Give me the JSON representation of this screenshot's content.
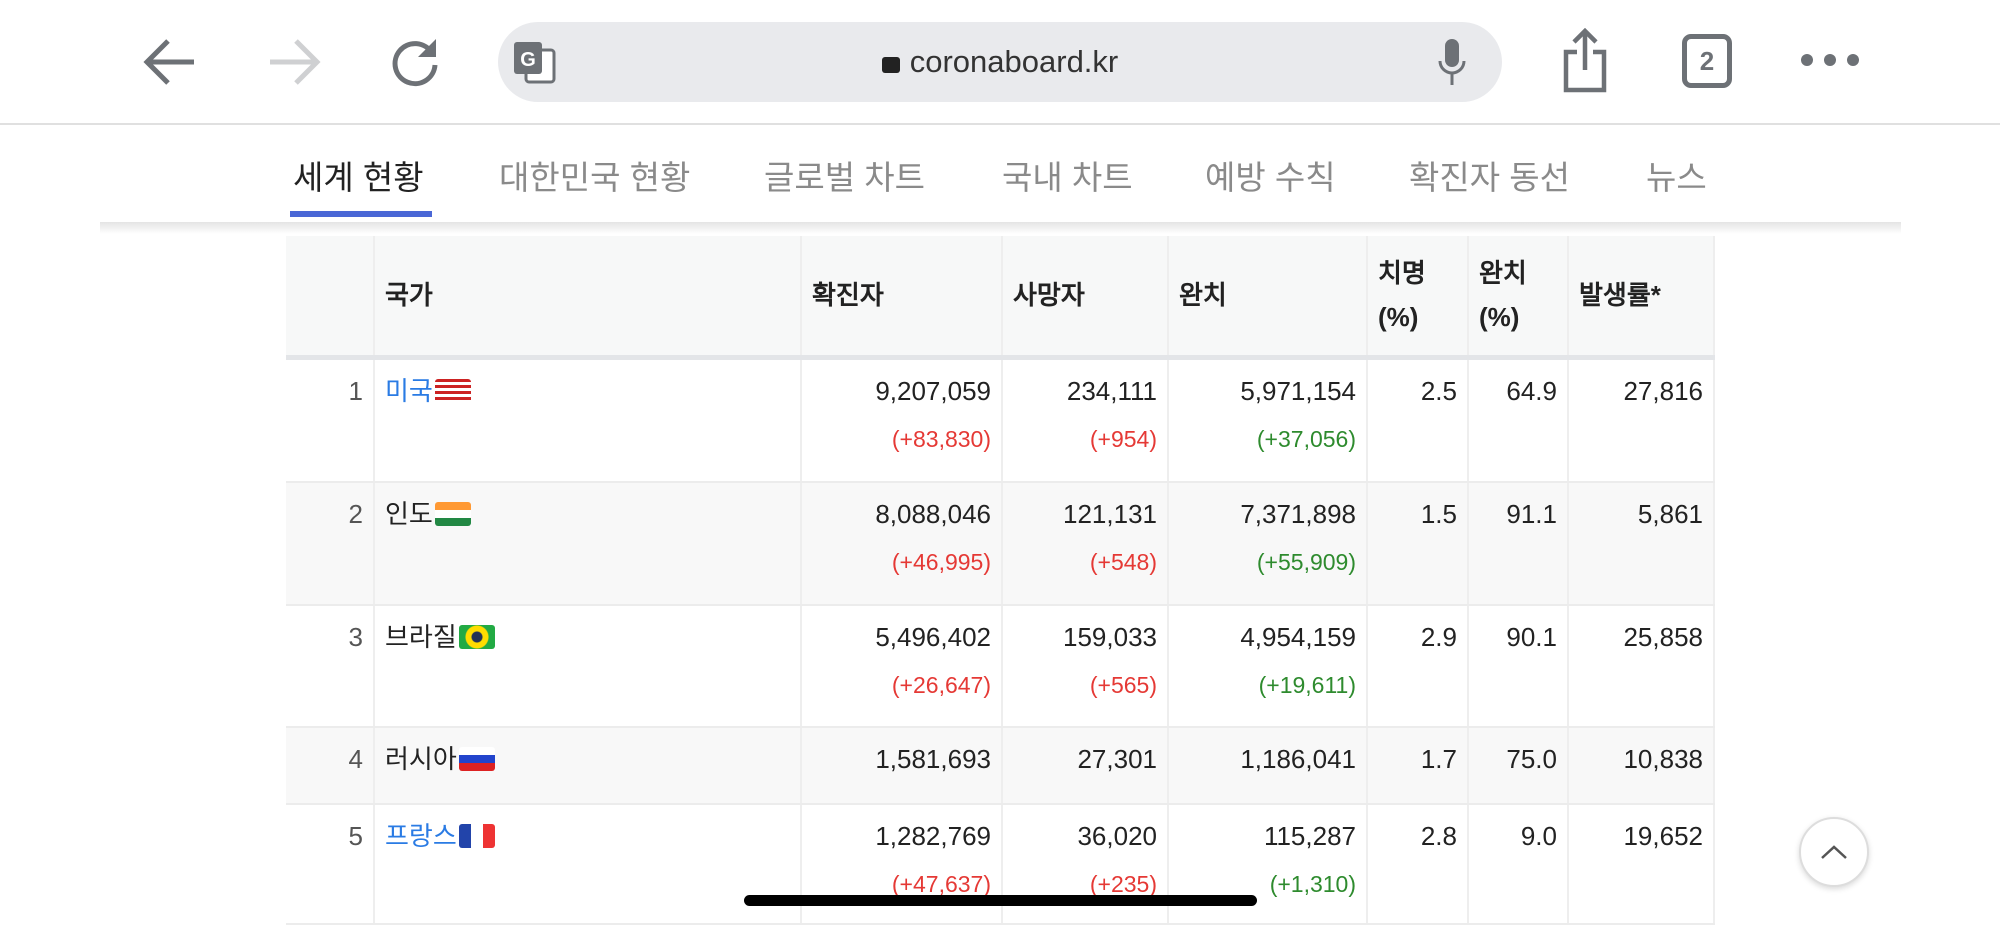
{
  "browser": {
    "url": "coronaboard.kr",
    "tab_count": "2"
  },
  "nav": {
    "tabs": [
      "세계 현황",
      "대한민국 현황",
      "글로벌 차트",
      "국내 차트",
      "예방 수칙",
      "확진자 동선",
      "뉴스"
    ]
  },
  "table": {
    "headers": {
      "rank": "",
      "country": "국가",
      "confirmed": "확진자",
      "deaths": "사망자",
      "recovered": "완치",
      "fatality_l1": "치명",
      "fatality_l2": "(%)",
      "recovery_l1": "완치",
      "recovery_l2": "(%)",
      "incidence": "발생률*"
    },
    "rows": [
      {
        "rank": "1",
        "country": "미국",
        "link": true,
        "confirmed": "9,207,059",
        "confirmed_delta": "(+83,830)",
        "deaths": "234,111",
        "deaths_delta": "(+954)",
        "recovered": "5,971,154",
        "recovered_delta": "(+37,056)",
        "fatality": "2.5",
        "recovery": "64.9",
        "incidence": "27,816"
      },
      {
        "rank": "2",
        "country": "인도",
        "link": false,
        "confirmed": "8,088,046",
        "confirmed_delta": "(+46,995)",
        "deaths": "121,131",
        "deaths_delta": "(+548)",
        "recovered": "7,371,898",
        "recovered_delta": "(+55,909)",
        "fatality": "1.5",
        "recovery": "91.1",
        "incidence": "5,861"
      },
      {
        "rank": "3",
        "country": "브라질",
        "link": false,
        "confirmed": "5,496,402",
        "confirmed_delta": "(+26,647)",
        "deaths": "159,033",
        "deaths_delta": "(+565)",
        "recovered": "4,954,159",
        "recovered_delta": "(+19,611)",
        "fatality": "2.9",
        "recovery": "90.1",
        "incidence": "25,858"
      },
      {
        "rank": "4",
        "country": "러시아",
        "link": false,
        "confirmed": "1,581,693",
        "deaths": "27,301",
        "recovered": "1,186,041",
        "fatality": "1.7",
        "recovery": "75.0",
        "incidence": "10,838"
      },
      {
        "rank": "5",
        "country": "프랑스",
        "link": true,
        "confirmed": "1,282,769",
        "confirmed_delta": "(+47,637)",
        "deaths": "36,020",
        "deaths_delta": "(+235)",
        "recovered": "115,287",
        "recovered_delta": "(+1,310)",
        "fatality": "2.8",
        "recovery": "9.0",
        "incidence": "19,652"
      }
    ]
  },
  "colors": {
    "accent": "#4a67d6",
    "increase": "#e53935",
    "recovered": "#2e8b2e",
    "link": "#2a7be4"
  }
}
